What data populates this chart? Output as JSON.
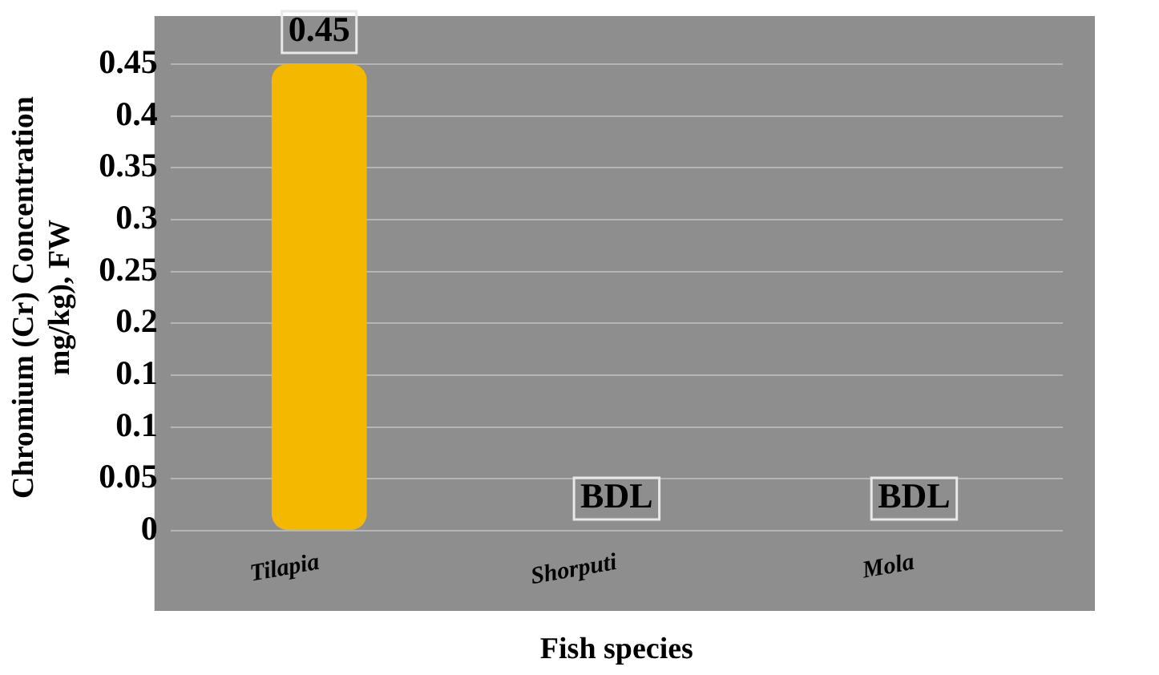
{
  "chart_data": {
    "type": "bar",
    "xlabel": "Fish species",
    "ylabel": "Chromium (Cr) Concentration mg/kg), FW",
    "categories": [
      "Tilapia",
      "Shorputi",
      "Mola"
    ],
    "values": [
      0.45,
      null,
      null
    ],
    "colors": [
      "#f5b800",
      "#2f4a1c",
      "#222222"
    ],
    "value_labels": [
      "0.45",
      "BDL",
      "BDL"
    ],
    "ylim": [
      0,
      0.45
    ],
    "yticks": [
      0,
      0.05,
      0.1,
      {
        "value": 0.15,
        "label": "0.1"
      },
      0.2,
      0.25,
      0.3,
      0.35,
      0.4,
      0.45
    ],
    "grid": true
  }
}
